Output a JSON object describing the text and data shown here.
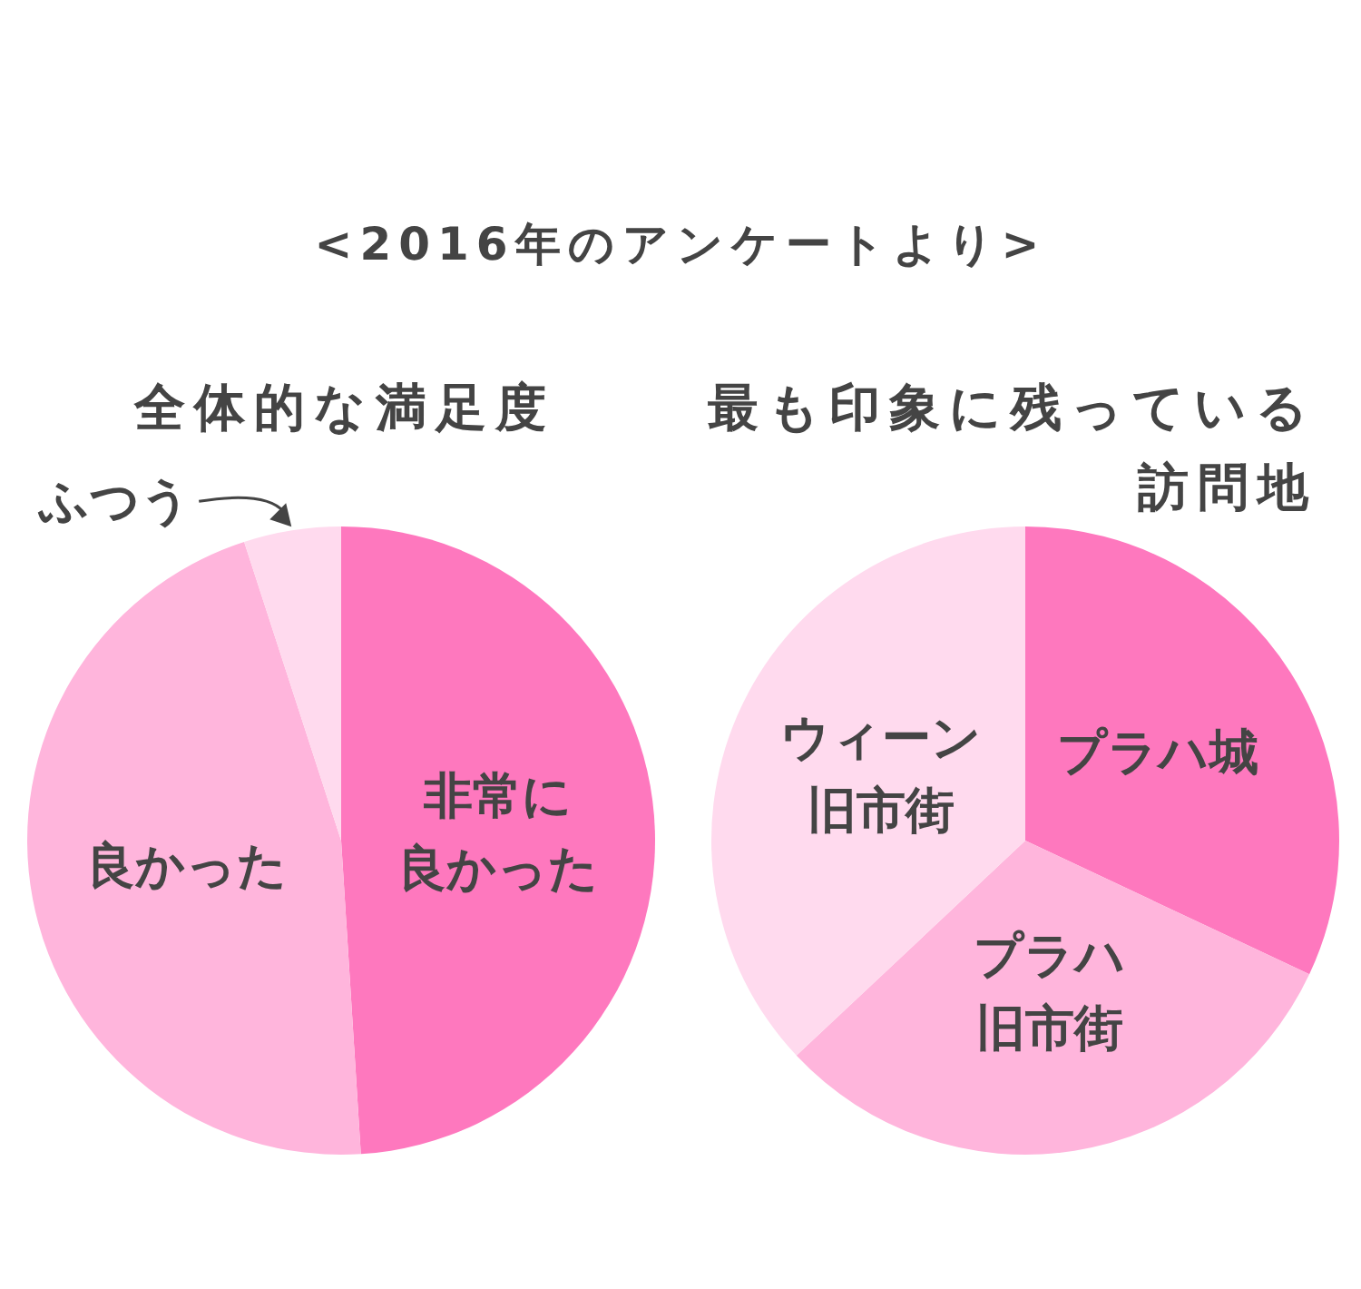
{
  "chart_data": [
    {
      "type": "pie",
      "title": "全体的な満足度",
      "annotations": [
        "<2016年のアンケートより>"
      ],
      "categories": [
        "非常に良かった",
        "良かった",
        "ふつう"
      ],
      "values": [
        49,
        46,
        5
      ],
      "colors": [
        "#fe78be",
        "#ffb5dc",
        "#ffdaee"
      ]
    },
    {
      "type": "pie",
      "title": "最も印象に残っている訪問地",
      "categories": [
        "プラハ城",
        "プラハ旧市街",
        "ウィーン旧市街"
      ],
      "values": [
        32,
        31,
        37
      ],
      "colors": [
        "#fe78be",
        "#ffb5dc",
        "#ffdaee"
      ]
    }
  ]
}
